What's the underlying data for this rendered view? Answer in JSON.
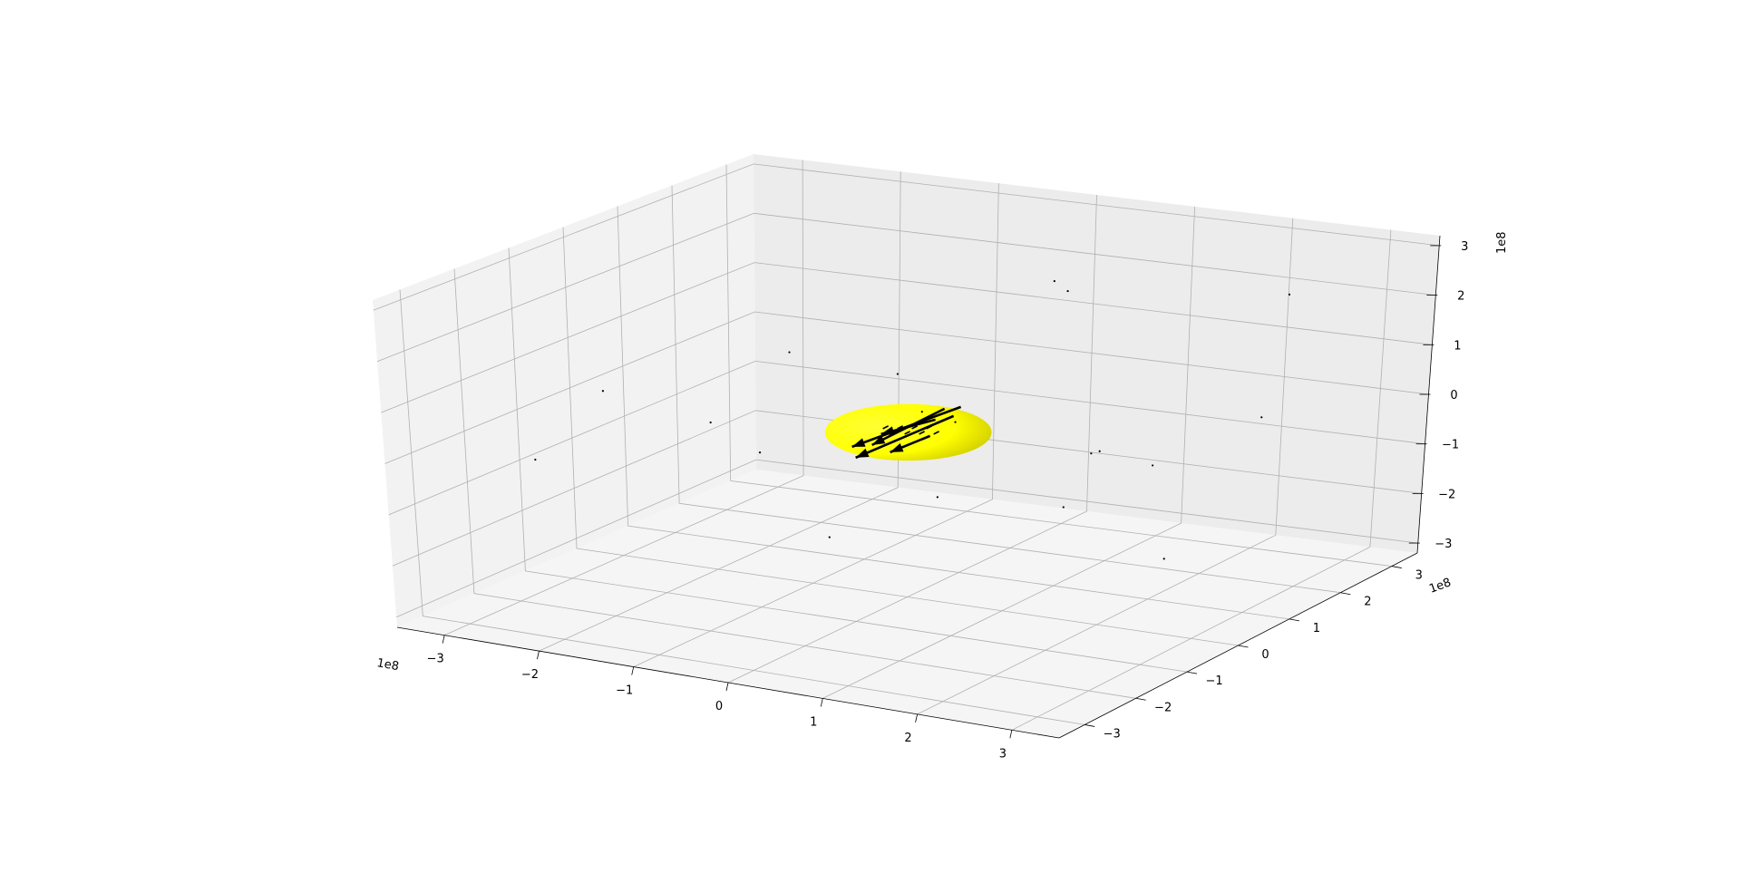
{
  "chart_data": {
    "type": "scatter",
    "projection": "3d",
    "title": "",
    "xlabel": "",
    "ylabel": "",
    "zlabel": "",
    "xlim": [
      -350000000.0,
      350000000.0
    ],
    "ylim": [
      -350000000.0,
      350000000.0
    ],
    "zlim": [
      -320000000.0,
      320000000.0
    ],
    "grid": true,
    "x_ticks": [
      -3,
      -2,
      -1,
      0,
      1,
      2,
      3
    ],
    "y_ticks": [
      -3,
      -2,
      -1,
      0,
      1,
      2,
      3
    ],
    "z_ticks": [
      -3,
      -2,
      -1,
      0,
      1,
      2,
      3
    ],
    "x_tick_labels": [
      "−3",
      "−2",
      "−1",
      "0",
      "1",
      "2",
      "3"
    ],
    "y_tick_labels": [
      "−3",
      "−2",
      "−1",
      "0",
      "1",
      "2",
      "3"
    ],
    "z_tick_labels": [
      "−3",
      "−2",
      "−1",
      "0",
      "1",
      "2",
      "3"
    ],
    "x_offset_label": "1e8",
    "y_offset_label": "1e8",
    "z_offset_label": "1e8",
    "body": {
      "shape": "ellipsoid",
      "color": "#ffff00",
      "center": [
        0,
        0,
        0
      ],
      "radius": [
        75000000.0,
        75000000.0,
        55000000.0
      ]
    },
    "scatter_points": [
      {
        "x": -260000000.0,
        "y": 100000000.0,
        "z": -90000000.0
      },
      {
        "x": -210000000.0,
        "y": 160000000.0,
        "z": 36000000.0
      },
      {
        "x": -300000000.0,
        "y": -160000000.0,
        "z": -60000000.0
      },
      {
        "x": -210000000.0,
        "y": -190000000.0,
        "z": 110000000.0
      },
      {
        "x": -50000000.0,
        "y": -190000000.0,
        "z": 31000000.0
      },
      {
        "x": 70000000.0,
        "y": -280000000.0,
        "z": -60000000.0
      },
      {
        "x": -40000000.0,
        "y": 100000000.0,
        "z": -14000000.0
      },
      {
        "x": 20000000.0,
        "y": 20000000.0,
        "z": -130000000.0
      },
      {
        "x": 130000000.0,
        "y": 60000000.0,
        "z": -140000000.0
      },
      {
        "x": -60000000.0,
        "y": 90000000.0,
        "z": 60000000.0
      },
      {
        "x": 40000000.0,
        "y": 200000000.0,
        "z": 220000000.0
      },
      {
        "x": 70000000.0,
        "y": 170000000.0,
        "z": 220000000.0
      },
      {
        "x": 200000000.0,
        "y": 100000000.0,
        "z": -60000000.0
      },
      {
        "x": 150000000.0,
        "y": 90000000.0,
        "z": -40000000.0
      },
      {
        "x": 120000000.0,
        "y": 130000000.0,
        "z": -70000000.0
      },
      {
        "x": 300000000.0,
        "y": -60000000.0,
        "z": -140000000.0
      },
      {
        "x": 290000000.0,
        "y": 180000000.0,
        "z": 260000000.0
      },
      {
        "x": 310000000.0,
        "y": 100000000.0,
        "z": 60000000.0
      },
      {
        "x": 0.0,
        "y": 90000000.0,
        "z": -20000000.0
      }
    ],
    "quiver_color": "#000000"
  }
}
